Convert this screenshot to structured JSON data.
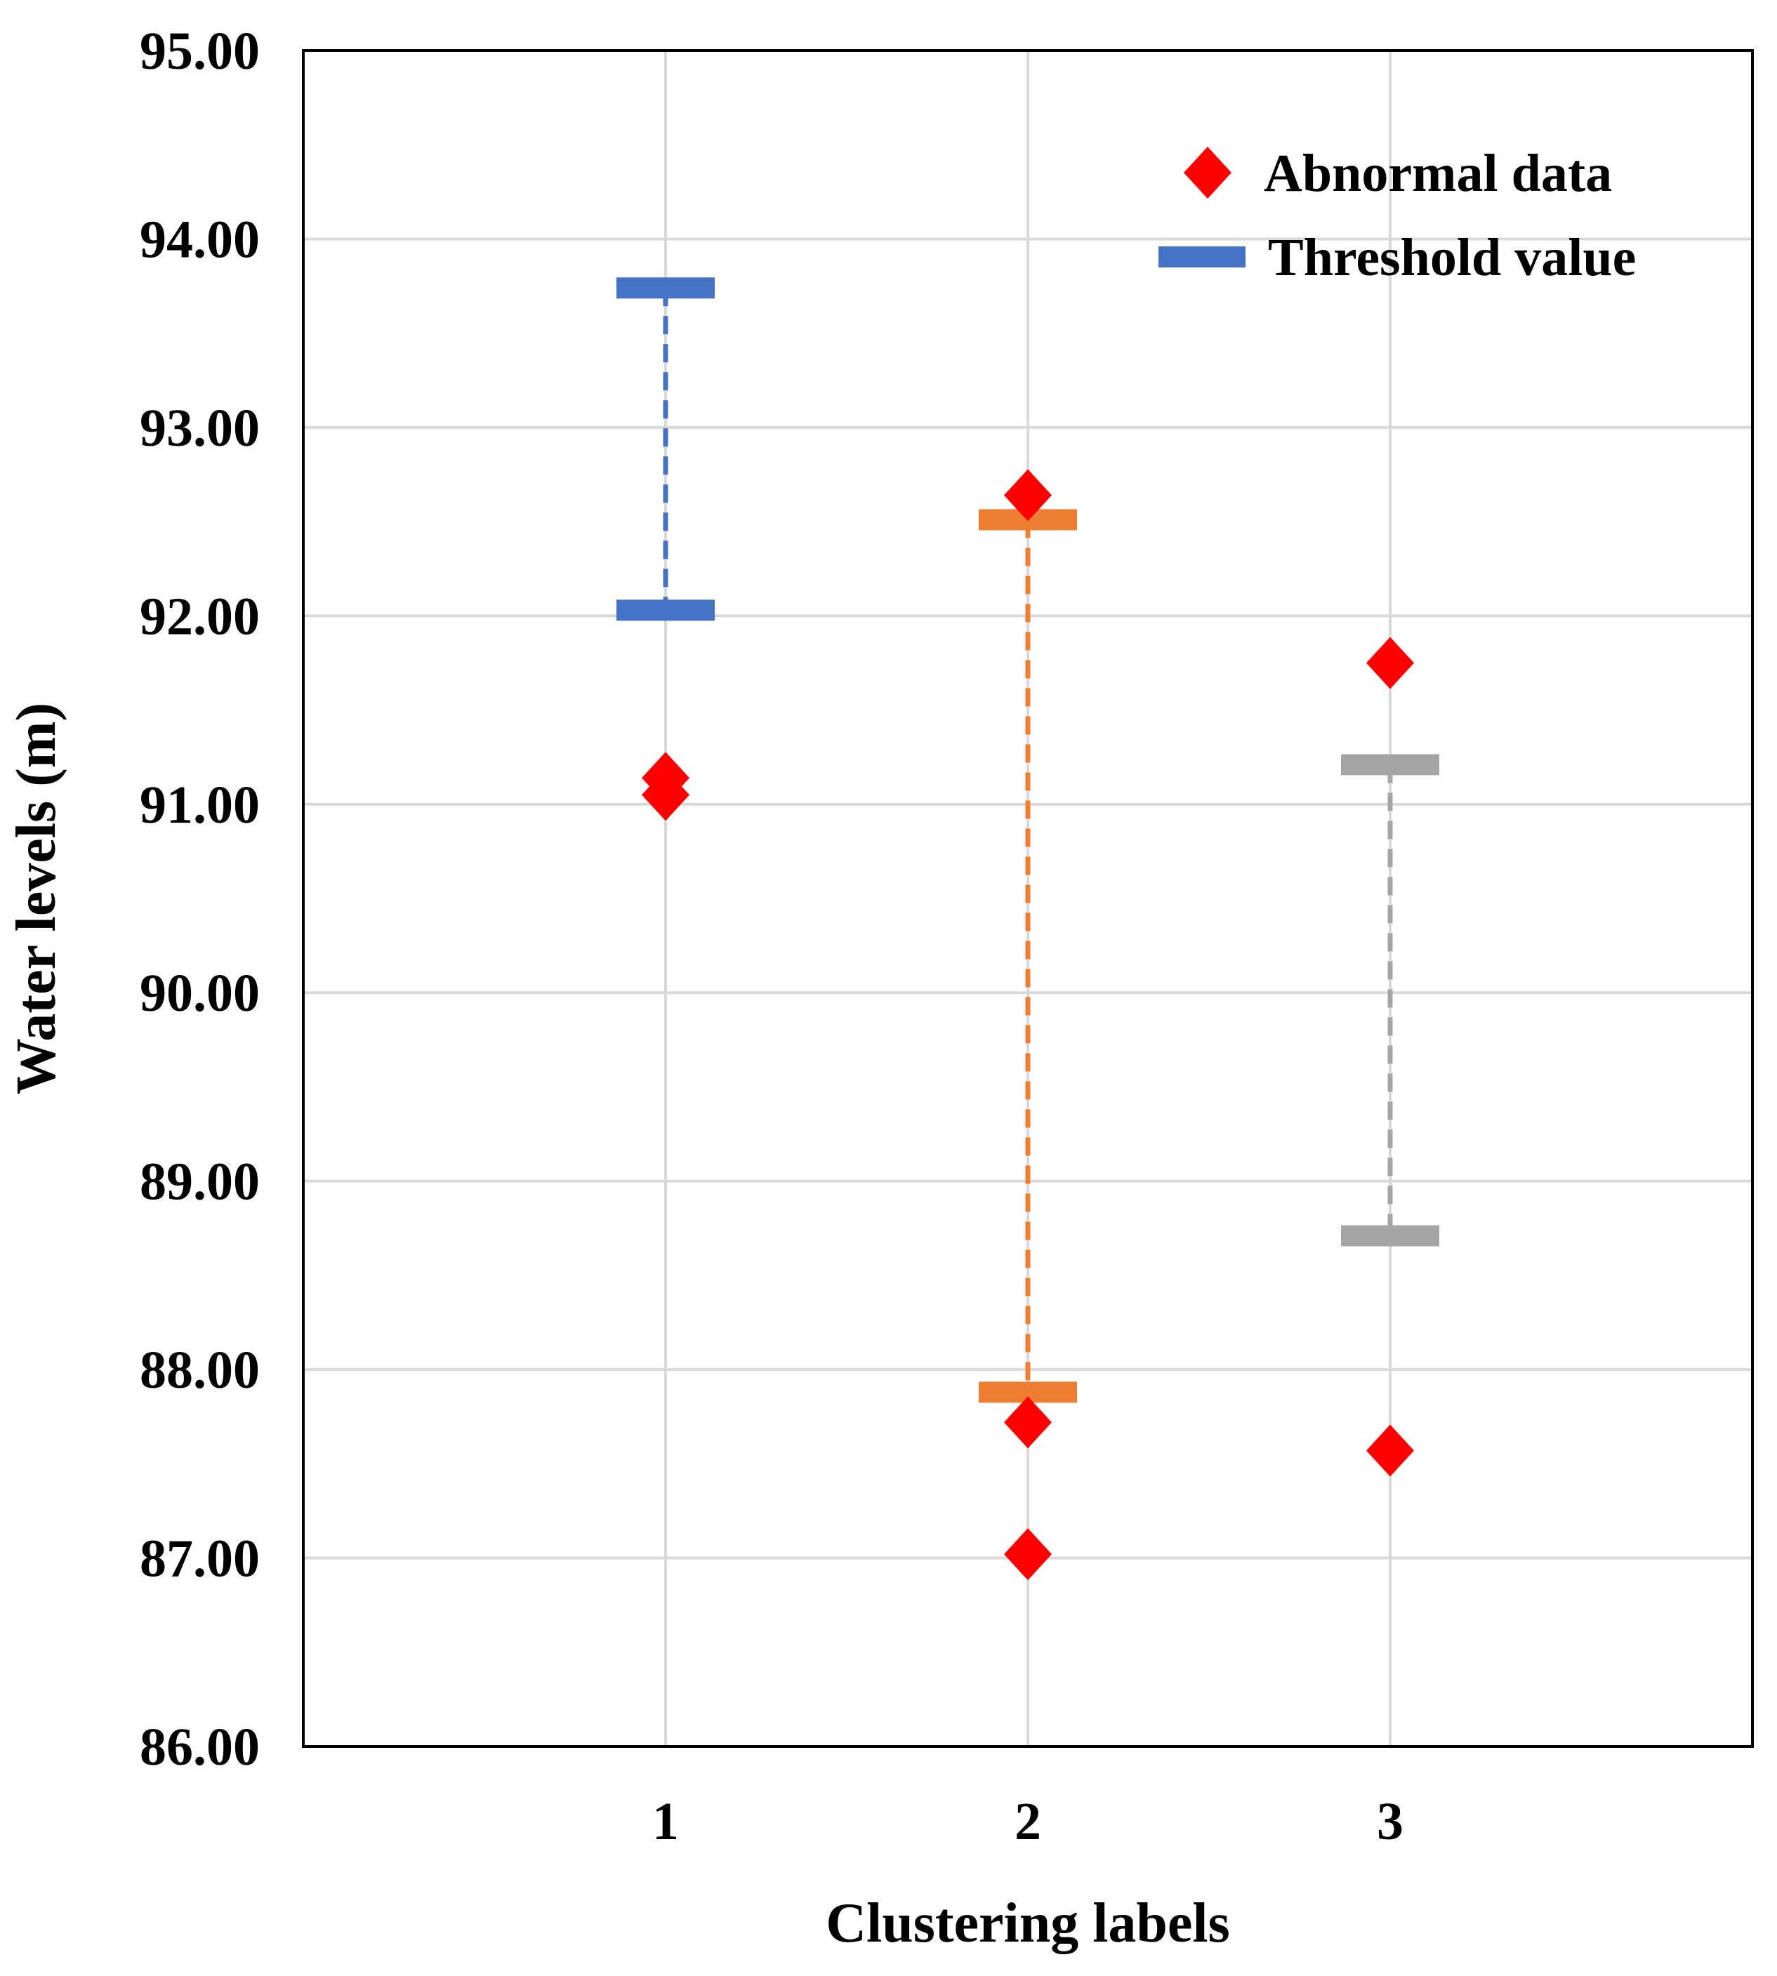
{
  "chart_data": {
    "type": "scatter",
    "title": "",
    "xlabel": "Clustering labels",
    "ylabel": "Water levels (m)",
    "ylim": [
      86,
      95
    ],
    "yticks": [
      "86.00",
      "87.00",
      "88.00",
      "89.00",
      "90.00",
      "91.00",
      "92.00",
      "93.00",
      "94.00",
      "95.00"
    ],
    "xlim": [
      0,
      4
    ],
    "xticks": [
      "1",
      "2",
      "3"
    ],
    "grid": true,
    "legend": {
      "position": "top-right",
      "entries": [
        {
          "label": "Abnormal data",
          "marker": "diamond",
          "color": "#ff0000"
        },
        {
          "label": "Threshold value",
          "marker": "bar",
          "color": "#4472c4"
        }
      ]
    },
    "thresholds": [
      {
        "cluster": 1,
        "lower": 92.03,
        "upper": 93.74,
        "color": "#4472c4"
      },
      {
        "cluster": 2,
        "lower": 87.88,
        "upper": 92.51,
        "color": "#ed7d31"
      },
      {
        "cluster": 3,
        "lower": 88.71,
        "upper": 91.21,
        "color": "#a5a5a5"
      }
    ],
    "abnormal_points": [
      {
        "x": 1,
        "y": 91.14
      },
      {
        "x": 1,
        "y": 91.05
      },
      {
        "x": 2,
        "y": 92.64
      },
      {
        "x": 2,
        "y": 87.72
      },
      {
        "x": 2,
        "y": 87.02
      },
      {
        "x": 3,
        "y": 91.75
      },
      {
        "x": 3,
        "y": 87.57
      }
    ],
    "abnormal_color": "#ff0000"
  }
}
